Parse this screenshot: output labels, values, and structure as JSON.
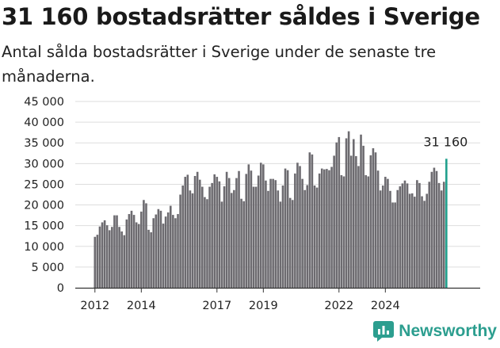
{
  "title": "31 160 bostadsrätter såldes i Sverige",
  "subtitle": "Antal sålda bostadsrätter i Sverige under de senaste tre månaderna.",
  "brand": {
    "name": "Newsworthy",
    "color": "#2c9e8f",
    "icon": "newsworthy-logo-icon"
  },
  "colors": {
    "bar": "#6d6b70",
    "highlight": "#21a08d",
    "grid": "#dddddd",
    "axis": "#333333"
  },
  "chart_data": {
    "type": "bar",
    "x_tick_labels": [
      "2012",
      "2014",
      "2017",
      "2019",
      "2022",
      "2024"
    ],
    "x_tick_indices": [
      0,
      19,
      50,
      69,
      100,
      119
    ],
    "y_tick_labels": [
      "0",
      "5 000",
      "10 000",
      "15 000",
      "20 000",
      "25 000",
      "30 000",
      "35 000",
      "40 000",
      "45 000"
    ],
    "ylim": [
      0,
      45000
    ],
    "grid": true,
    "highlight_label": "31 160",
    "values": [
      12300,
      12800,
      14800,
      15800,
      16300,
      15100,
      13900,
      14700,
      17500,
      17500,
      14700,
      13600,
      12700,
      16500,
      17800,
      18600,
      17600,
      15800,
      15400,
      18400,
      21200,
      20400,
      14000,
      13400,
      16800,
      17700,
      19000,
      18600,
      15500,
      17200,
      18200,
      19800,
      17600,
      16800,
      17800,
      22500,
      24700,
      26800,
      27300,
      23500,
      22800,
      27000,
      28000,
      26100,
      24400,
      21900,
      21400,
      24400,
      25300,
      27400,
      26800,
      25700,
      20800,
      24500,
      28000,
      26500,
      22900,
      23600,
      26500,
      28200,
      21500,
      20900,
      27500,
      29800,
      28300,
      24400,
      24400,
      27100,
      30200,
      29800,
      25900,
      23400,
      26300,
      26300,
      26000,
      23500,
      20800,
      24700,
      28800,
      28400,
      21700,
      21200,
      27600,
      30200,
      29400,
      26300,
      23600,
      24800,
      32700,
      32200,
      24700,
      24200,
      27600,
      28800,
      28600,
      28700,
      28400,
      29200,
      31900,
      35100,
      36400,
      27200,
      26900,
      36100,
      37800,
      31900,
      35900,
      31800,
      29400,
      37000,
      34300,
      27200,
      26900,
      32000,
      33700,
      32700,
      28300,
      23500,
      24700,
      26800,
      26300,
      23400,
      20600,
      20600,
      23600,
      24500,
      25200,
      25900,
      25200,
      22700,
      22800,
      22000,
      26000,
      25300,
      22100,
      21000,
      22700,
      25600,
      28000,
      29000,
      28200,
      25300,
      23500,
      25600,
      31160
    ]
  }
}
